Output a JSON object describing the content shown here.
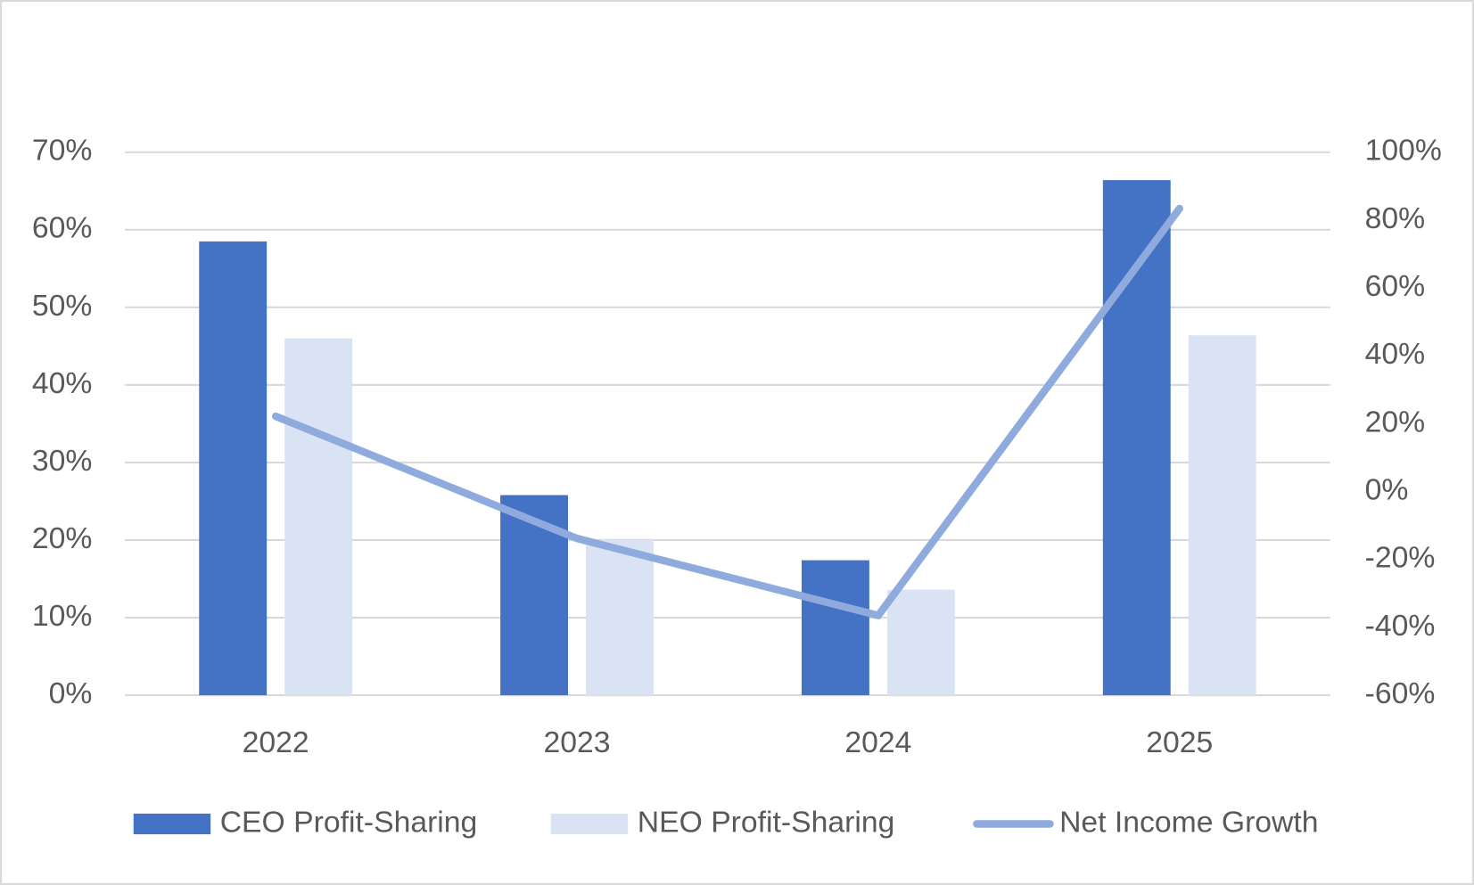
{
  "chart_data": {
    "type": "bar-line",
    "categories": [
      "2022",
      "2023",
      "2024",
      "2025"
    ],
    "series": [
      {
        "name": "CEO Profit-Sharing",
        "type": "bar",
        "color": "#4472c4",
        "values": [
          58.5,
          25.8,
          17.4,
          66.4
        ]
      },
      {
        "name": "NEO Profit-Sharing",
        "type": "bar",
        "color": "#dae3f3",
        "values": [
          46.0,
          20.0,
          13.6,
          46.4
        ]
      },
      {
        "name": "Net Income Growth",
        "type": "line",
        "axis": "y2",
        "color": "#8faadc",
        "values": [
          22.2,
          -13.8,
          -36.5,
          83.4
        ]
      }
    ],
    "ylim": [
      0,
      70
    ],
    "yticks": [
      {
        "value": 0,
        "label": "0%"
      },
      {
        "value": 10,
        "label": "10%"
      },
      {
        "value": 20,
        "label": "20%"
      },
      {
        "value": 30,
        "label": "30%"
      },
      {
        "value": 40,
        "label": "40%"
      },
      {
        "value": 50,
        "label": "50%"
      },
      {
        "value": 60,
        "label": "60%"
      },
      {
        "value": 70,
        "label": "70%"
      }
    ],
    "y2lim": [
      -60,
      100
    ],
    "y2ticks": [
      {
        "value": -60,
        "label": "-60%"
      },
      {
        "value": -40,
        "label": "-40%"
      },
      {
        "value": -20,
        "label": "-20%"
      },
      {
        "value": 0,
        "label": "0%"
      },
      {
        "value": 20,
        "label": "20%"
      },
      {
        "value": 40,
        "label": "40%"
      },
      {
        "value": 60,
        "label": "60%"
      },
      {
        "value": 80,
        "label": "80%"
      },
      {
        "value": 100,
        "label": "100%"
      }
    ],
    "grid": true,
    "legend": "bottom"
  }
}
